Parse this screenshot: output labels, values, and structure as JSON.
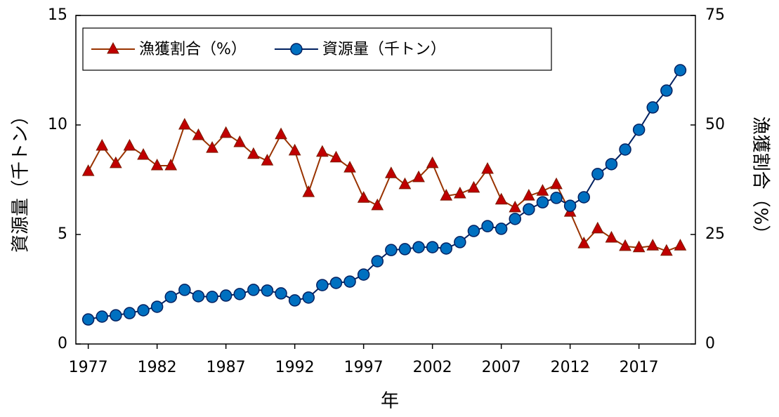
{
  "chart_data": {
    "type": "line",
    "x_label": "年",
    "y_label": "資源量（千トン）",
    "y2_label": "漁獲割合（%）",
    "x": [
      1977,
      1978,
      1979,
      1980,
      1981,
      1982,
      1983,
      1984,
      1985,
      1986,
      1987,
      1988,
      1989,
      1990,
      1991,
      1992,
      1993,
      1994,
      1995,
      1996,
      1997,
      1998,
      1999,
      2000,
      2001,
      2002,
      2003,
      2004,
      2005,
      2006,
      2007,
      2008,
      2009,
      2010,
      2011,
      2012,
      2013,
      2014,
      2015,
      2016,
      2017,
      2018,
      2019,
      2020
    ],
    "xlim": [
      1976.1,
      2021.1
    ],
    "xticks": [
      1977,
      1982,
      1987,
      1992,
      1997,
      2002,
      2007,
      2012,
      2017
    ],
    "ylim": [
      0,
      15
    ],
    "yticks": [
      0,
      5,
      10,
      15
    ],
    "y2lim": [
      0,
      75
    ],
    "y2ticks": [
      0,
      25,
      50,
      75
    ],
    "legend": "upper left",
    "series": [
      {
        "name": "漁獲割合（%）",
        "axis": "y2",
        "marker": "triangle",
        "color": "#c00000",
        "line_color": "#993300",
        "values": [
          39.4,
          45.2,
          41.2,
          45.2,
          43.1,
          40.7,
          40.7,
          50.0,
          47.6,
          44.7,
          48.1,
          46.0,
          43.3,
          41.8,
          47.8,
          44.1,
          34.6,
          43.8,
          42.5,
          40.2,
          33.3,
          31.6,
          38.9,
          36.4,
          38.0,
          41.2,
          33.8,
          34.3,
          35.6,
          39.9,
          32.9,
          31.1,
          33.8,
          34.9,
          36.4,
          30.1,
          22.9,
          26.3,
          24.2,
          22.3,
          22.0,
          22.4,
          21.2,
          22.4
        ]
      },
      {
        "name": "資源量（千トン）",
        "axis": "y",
        "marker": "circle",
        "color": "#0070c0",
        "line_color": "#002060",
        "values": [
          1.12,
          1.25,
          1.31,
          1.41,
          1.54,
          1.7,
          2.15,
          2.47,
          2.18,
          2.15,
          2.21,
          2.28,
          2.47,
          2.44,
          2.31,
          1.99,
          2.12,
          2.69,
          2.79,
          2.85,
          3.17,
          3.78,
          4.29,
          4.33,
          4.42,
          4.42,
          4.36,
          4.65,
          5.16,
          5.38,
          5.26,
          5.71,
          6.15,
          6.47,
          6.67,
          6.31,
          6.7,
          7.76,
          8.21,
          8.88,
          9.78,
          10.8,
          11.57,
          12.5
        ]
      }
    ]
  }
}
